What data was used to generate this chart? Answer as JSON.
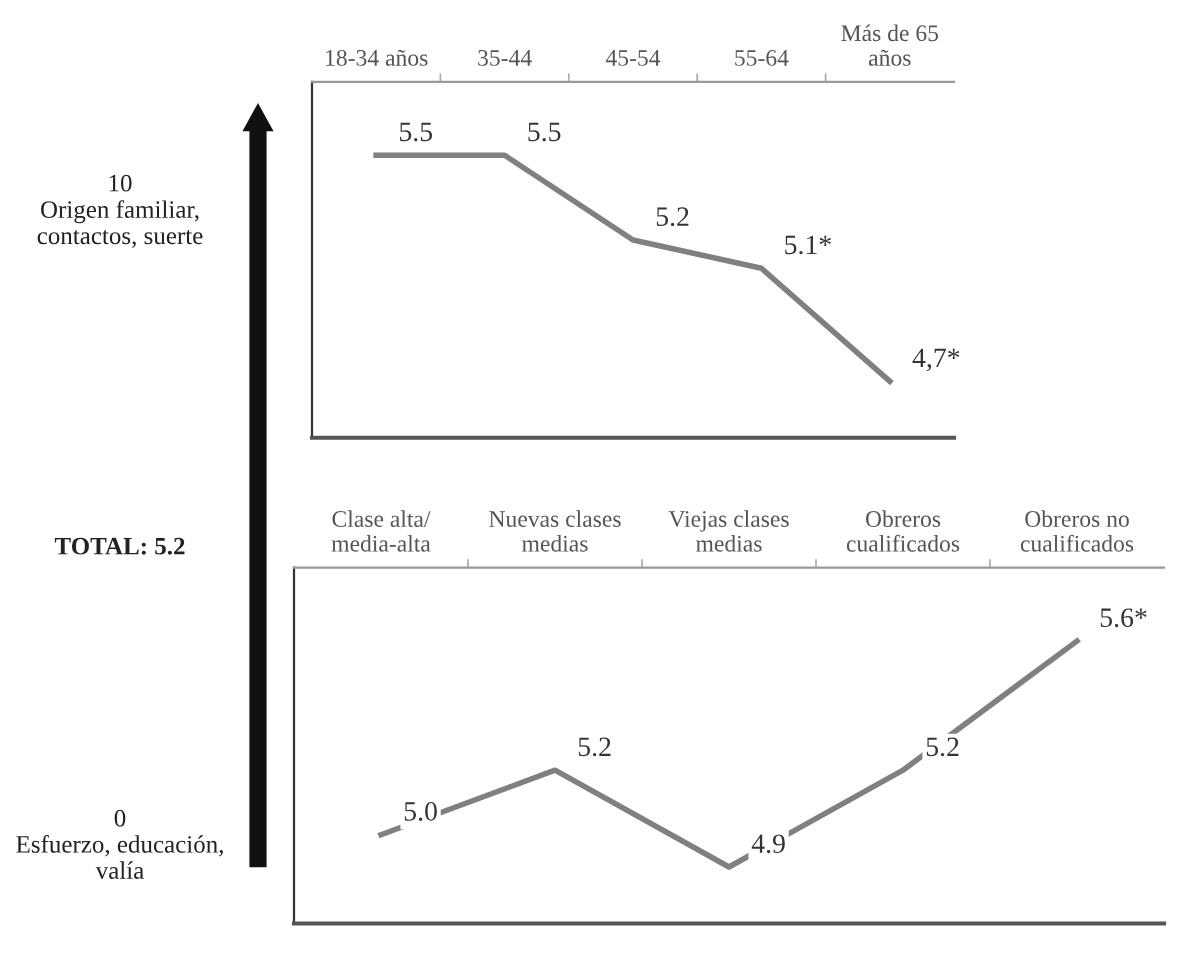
{
  "chart_data": [
    {
      "type": "line",
      "categories": [
        "18-34 años",
        "35-44",
        "45-54",
        "55-64",
        "Más de 65\naños"
      ],
      "series": [
        {
          "color": "#808080",
          "values": [
            5.5,
            5.5,
            5.2,
            5.1,
            4.7
          ],
          "value_labels": [
            "5.5",
            "5.5",
            "5.2",
            "5.1*",
            "4,7*"
          ]
        }
      ],
      "grid": false,
      "legend": false,
      "marker": "none",
      "line_style": "solid",
      "annotations": [
        "10\nOrigen familiar,\ncontactos, suerte",
        "TOTAL: 5.2",
        "0\nEsfuerzo, educación,\nvalía"
      ]
    },
    {
      "type": "line",
      "categories": [
        "Clase alta/\nmedia-alta",
        "Nuevas clases\nmedias",
        "Viejas clases\nmedias",
        "Obreros\ncualificados",
        "Obreros no\ncualificados"
      ],
      "series": [
        {
          "color": "#808080",
          "values": [
            5.0,
            5.2,
            4.9,
            5.2,
            5.6
          ],
          "value_labels": [
            "5.0",
            "5.2",
            "4.9",
            "5.2",
            "5.6*"
          ]
        }
      ],
      "grid": false,
      "legend": false,
      "marker": "none",
      "line_style": "solid"
    }
  ]
}
